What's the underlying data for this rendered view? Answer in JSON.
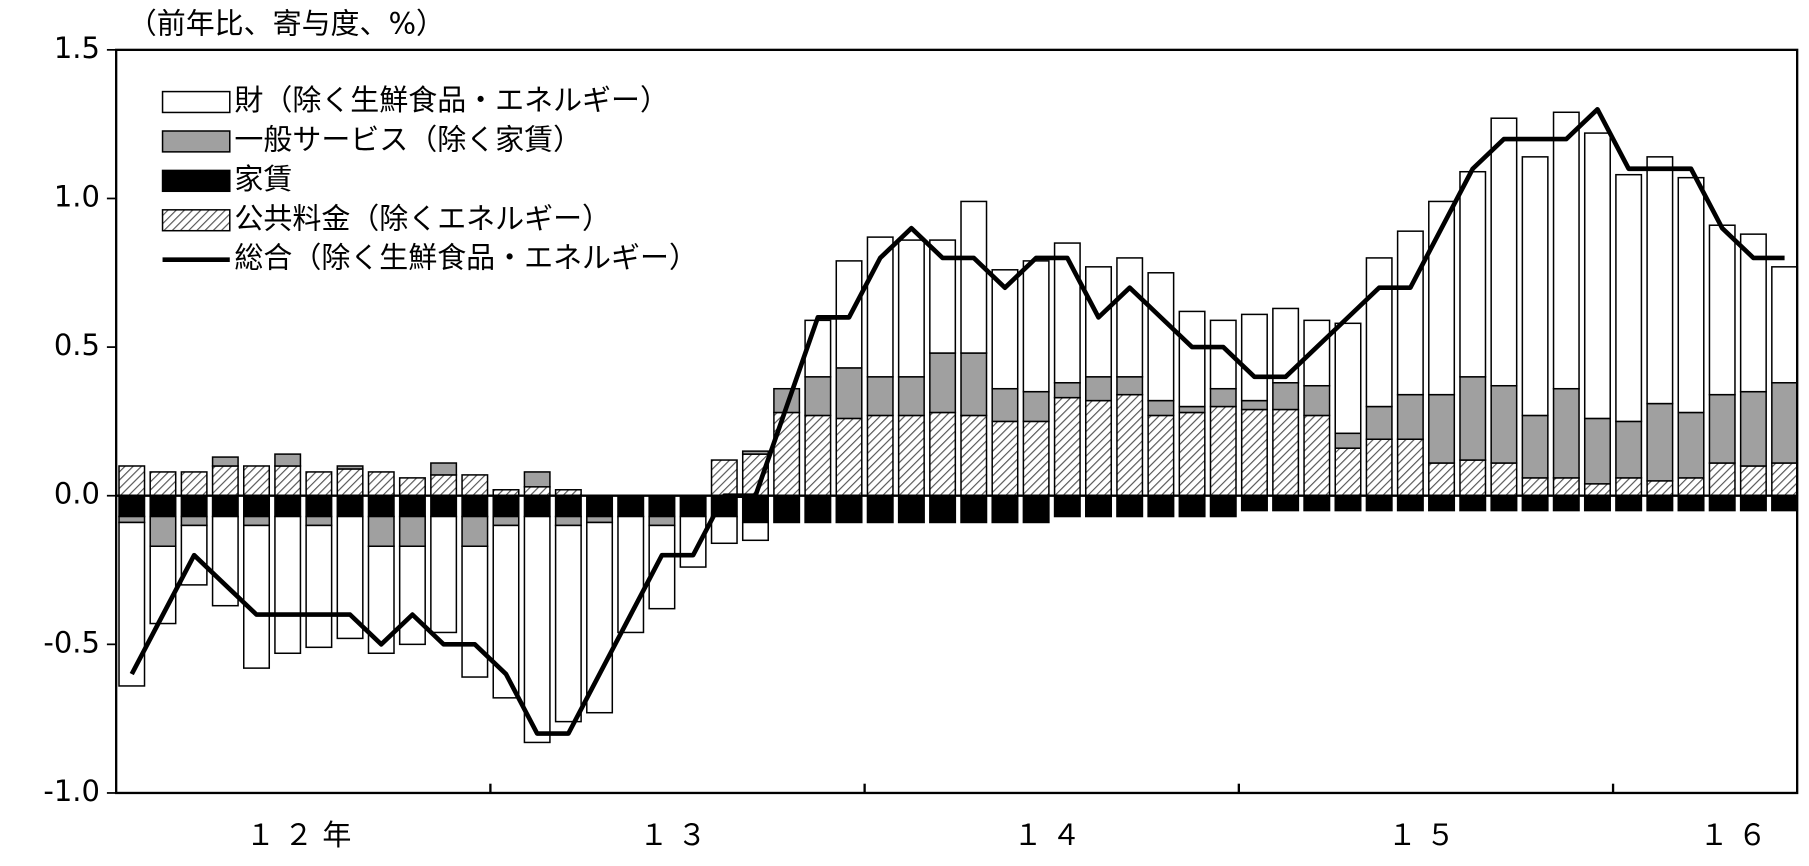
{
  "chart_data": {
    "type": "bar",
    "title": "（前年比、寄与度、%）",
    "categories": [
      null,
      null,
      null,
      null,
      null,
      "１２年",
      null,
      null,
      null,
      null,
      null,
      null,
      null,
      null,
      null,
      null,
      null,
      "１３",
      null,
      null,
      null,
      null,
      null,
      null,
      null,
      null,
      null,
      null,
      null,
      "１４",
      null,
      null,
      null,
      null,
      null,
      null,
      null,
      null,
      null,
      null,
      null,
      "１５",
      null,
      null,
      null,
      null,
      null,
      null,
      null,
      null,
      null,
      "１６",
      null,
      null
    ],
    "ylim": [
      -1.0,
      1.5
    ],
    "yticks": [
      {
        "value": -1.0,
        "label": "-1.0"
      },
      -0.5,
      {
        "value": 0.0,
        "label": "0.0"
      },
      0.5,
      {
        "value": 1.0,
        "label": "1.0"
      },
      1.5
    ],
    "legend": "upper left",
    "series": [
      {
        "name": "財（除く生鮮食品・エネルギー）",
        "color": "#ffffff",
        "values": [
          -0.55,
          -0.26,
          -0.2,
          -0.3,
          -0.48,
          -0.46,
          -0.41,
          -0.41,
          -0.36,
          -0.33,
          -0.39,
          -0.44,
          -0.58,
          -0.76,
          -0.66,
          -0.64,
          -0.39,
          -0.28,
          -0.17,
          -0.09,
          -0.06,
          0.0,
          0.19,
          0.36,
          0.47,
          0.46,
          0.38,
          0.51,
          0.4,
          0.44,
          0.47,
          0.37,
          0.4,
          0.43,
          0.32,
          0.23,
          0.29,
          0.25,
          0.22,
          0.37,
          0.5,
          0.55,
          0.65,
          0.69,
          0.9,
          0.87,
          0.93,
          0.96,
          0.83,
          0.83,
          0.79,
          0.57,
          0.53,
          0.39
        ]
      },
      {
        "name": "一般サービス（除く家賃）",
        "color": "#a0a0a0",
        "values": [
          -0.02,
          -0.1,
          -0.03,
          0.03,
          -0.03,
          0.04,
          -0.03,
          0.01,
          -0.1,
          -0.1,
          0.04,
          -0.1,
          -0.03,
          0.05,
          -0.03,
          -0.02,
          0,
          -0.03,
          0,
          0,
          0.01,
          0.08,
          0.13,
          0.17,
          0.13,
          0.13,
          0.2,
          0.21,
          0.11,
          0.1,
          0.05,
          0.08,
          0.06,
          0.05,
          0.02,
          0.06,
          0.03,
          0.09,
          0.1,
          0.05,
          0.11,
          0.15,
          0.23,
          0.28,
          0.26,
          0.21,
          0.3,
          0.22,
          0.19,
          0.26,
          0.22,
          0.23,
          0.25,
          0.27
        ]
      },
      {
        "name": "家賃",
        "color": "#000000",
        "values": [
          -0.07,
          -0.07,
          -0.07,
          -0.07,
          -0.07,
          -0.07,
          -0.07,
          -0.07,
          -0.07,
          -0.07,
          -0.07,
          -0.07,
          -0.07,
          -0.07,
          -0.07,
          -0.07,
          -0.07,
          -0.07,
          -0.07,
          -0.07,
          -0.09,
          -0.09,
          -0.09,
          -0.09,
          -0.09,
          -0.09,
          -0.09,
          -0.09,
          -0.09,
          -0.09,
          -0.07,
          -0.07,
          -0.07,
          -0.07,
          -0.07,
          -0.07,
          -0.05,
          -0.05,
          -0.05,
          -0.05,
          -0.05,
          -0.05,
          -0.05,
          -0.05,
          -0.05,
          -0.05,
          -0.05,
          -0.05,
          -0.05,
          -0.05,
          -0.05,
          -0.05,
          -0.05,
          -0.05
        ]
      },
      {
        "name": "公共料金（除くエネルギー）",
        "color": "#ffffff",
        "hatch": true,
        "values": [
          0.1,
          0.08,
          0.08,
          0.1,
          0.1,
          0.1,
          0.08,
          0.09,
          0.08,
          0.06,
          0.07,
          0.07,
          0.02,
          0.03,
          0.02,
          0.0,
          0.0,
          0.0,
          0.0,
          0.12,
          0.14,
          0.28,
          0.27,
          0.26,
          0.27,
          0.27,
          0.28,
          0.27,
          0.25,
          0.25,
          0.33,
          0.32,
          0.34,
          0.27,
          0.28,
          0.3,
          0.29,
          0.29,
          0.27,
          0.16,
          0.19,
          0.19,
          0.11,
          0.12,
          0.11,
          0.06,
          0.06,
          0.04,
          0.06,
          0.05,
          0.06,
          0.11,
          0.1,
          0.11
        ]
      },
      {
        "name": "総合（除く生鮮食品・エネルギー）",
        "color": "#000000",
        "type": "line",
        "values": [
          -0.6,
          -0.4,
          -0.2,
          -0.3,
          -0.4,
          -0.4,
          -0.4,
          -0.4,
          -0.5,
          -0.4,
          -0.5,
          -0.5,
          -0.6,
          -0.8,
          -0.8,
          -0.6,
          -0.4,
          -0.2,
          -0.2,
          0.0,
          0.0,
          0.3,
          0.6,
          0.6,
          0.8,
          0.9,
          0.8,
          0.8,
          0.7,
          0.8,
          0.8,
          0.6,
          0.7,
          0.6,
          0.5,
          0.5,
          0.4,
          0.4,
          0.5,
          0.6,
          0.7,
          0.7,
          0.9,
          1.1,
          1.2,
          1.2,
          1.2,
          1.3,
          1.1,
          1.1,
          1.1,
          0.9,
          0.8,
          0.8
        ]
      }
    ]
  }
}
